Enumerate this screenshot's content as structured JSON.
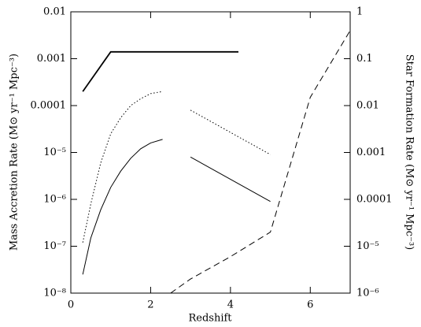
{
  "chart_data": {
    "type": "line",
    "xlabel": "Redshift",
    "ylabel": "Mass Accretion Rate (M⊙ yr⁻¹ Mpc⁻³)",
    "y2label": "Star Formation Rate (M⊙ yr⁻¹ Mpc⁻³)",
    "xlim": [
      0,
      7
    ],
    "xticks": [
      0,
      2,
      4,
      6
    ],
    "ylim": [
      1e-08,
      0.01
    ],
    "log_y": true,
    "yticks": [
      0.01,
      0.001,
      0.0001,
      {
        "value": 1e-05,
        "label": "10⁻⁵"
      },
      {
        "value": 1e-06,
        "label": "10⁻⁶"
      },
      {
        "value": 1e-07,
        "label": "10⁻⁷"
      },
      {
        "value": 1e-08,
        "label": "10⁻⁸"
      }
    ],
    "y2lim": [
      1e-06,
      1
    ],
    "y2ticks": [
      1,
      0.1,
      0.01,
      0.001,
      0.0001,
      {
        "value": 1e-05,
        "label": "10⁻⁵"
      },
      {
        "value": 1e-06,
        "label": "10⁻⁶"
      }
    ],
    "series": [
      {
        "color": "#000000",
        "dash": "solid",
        "width": 1.8,
        "x": [
          0.3,
          1,
          4.2
        ],
        "values": [
          0.0002,
          0.0014,
          0.0014
        ]
      },
      {
        "color": "#000000",
        "dash": "dotted",
        "width": 1,
        "x": [
          0.3,
          0.5,
          0.75,
          1.0,
          1.25,
          1.5,
          1.75,
          2.0,
          2.3
        ],
        "values": [
          1.2e-07,
          8e-07,
          6e-06,
          2.5e-05,
          5.5e-05,
          0.0001,
          0.00014,
          0.00018,
          0.0002
        ]
      },
      {
        "color": "#000000",
        "dash": "solid",
        "width": 1,
        "x": [
          0.3,
          0.5,
          0.75,
          1.0,
          1.25,
          1.5,
          1.75,
          2.0,
          2.3
        ],
        "values": [
          2.5e-08,
          1.5e-07,
          6e-07,
          1.8e-06,
          4e-06,
          7.5e-06,
          1.2e-05,
          1.6e-05,
          1.9e-05
        ]
      },
      {
        "color": "#000000",
        "dash": "dotted",
        "width": 1,
        "x": [
          3,
          5
        ],
        "values": [
          8e-05,
          9e-06
        ]
      },
      {
        "color": "#000000",
        "dash": "solid",
        "width": 1,
        "x": [
          3,
          5
        ],
        "values": [
          8e-06,
          9e-07
        ]
      },
      {
        "color": "#000000",
        "dash": "dashed",
        "width": 1,
        "axis": "y2",
        "x": [
          2.5,
          3,
          4,
          5,
          6,
          7
        ],
        "values": [
          1e-06,
          2e-06,
          6e-06,
          2e-05,
          0.015,
          0.4
        ]
      }
    ]
  }
}
